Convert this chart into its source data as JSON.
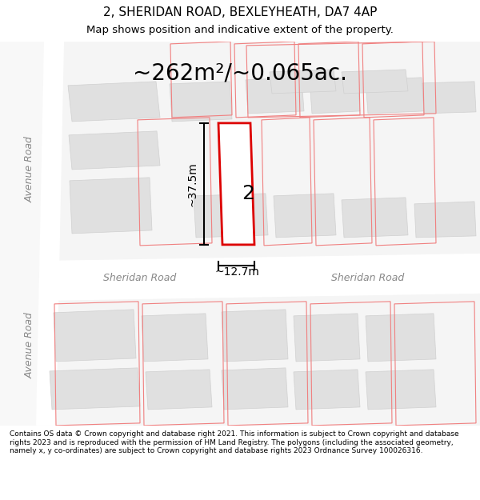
{
  "title": "2, SHERIDAN ROAD, BEXLEYHEATH, DA7 4AP",
  "subtitle": "Map shows position and indicative extent of the property.",
  "area_text": "~262m²/~0.065ac.",
  "dim_height": "~37.5m",
  "dim_width": "~12.7m",
  "plot_number": "2",
  "footer": "Contains OS data © Crown copyright and database right 2021. This information is subject to Crown copyright and database rights 2023 and is reproduced with the permission of HM Land Registry. The polygons (including the associated geometry, namely x, y co-ordinates) are subject to Crown copyright and database rights 2023 Ordnance Survey 100026316.",
  "bg_color": "#ffffff",
  "map_bg": "#f5f5f5",
  "road_color": "#ffffff",
  "building_fill": "#e8e8e8",
  "building_edge": "#cccccc",
  "red_line_color": "#e8192c",
  "pink_line_color": "#f5a0a0",
  "plot_outline_color": "#dd0000",
  "road_label_color": "#888888",
  "title_color": "#000000",
  "footer_color": "#000000",
  "dim_color": "#000000"
}
